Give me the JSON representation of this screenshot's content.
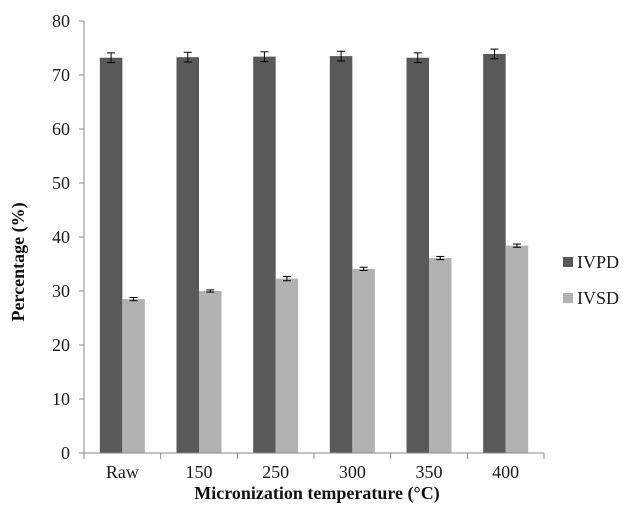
{
  "chart_data": {
    "type": "bar",
    "xlabel": "Micronization temperature (°C)",
    "ylabel": "Percentage (%)",
    "categories": [
      "Raw",
      "150",
      "250",
      "300",
      "350",
      "400"
    ],
    "series": [
      {
        "name": "IVPD",
        "color": "#595959",
        "values": [
          73.2,
          73.3,
          73.4,
          73.5,
          73.2,
          73.9
        ],
        "errors": [
          0.9,
          0.9,
          0.9,
          0.9,
          0.9,
          0.9
        ]
      },
      {
        "name": "IVSD",
        "color": "#b2b2b2",
        "values": [
          28.5,
          30.0,
          32.3,
          34.1,
          36.1,
          38.4
        ],
        "errors": [
          0.3,
          0.2,
          0.4,
          0.3,
          0.3,
          0.3
        ]
      }
    ],
    "ylim": [
      0,
      80
    ],
    "yticks": [
      0,
      10,
      20,
      30,
      40,
      50,
      60,
      70,
      80
    ],
    "grid": false,
    "legend_position": "right"
  }
}
